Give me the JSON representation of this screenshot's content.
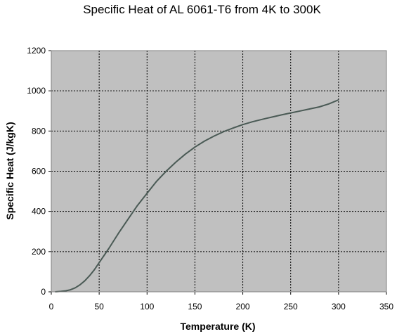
{
  "chart_data": {
    "type": "line",
    "title": "Specific Heat of AL 6061-T6 from 4K to 300K",
    "xlabel": "Temperature (K)",
    "ylabel": "Specific Heat (J/kgK)",
    "xlim": [
      0,
      350
    ],
    "ylim": [
      0,
      1200
    ],
    "xticks": [
      0,
      50,
      100,
      150,
      200,
      250,
      300,
      350
    ],
    "yticks": [
      0,
      200,
      400,
      600,
      800,
      1000,
      1200
    ],
    "grid": true,
    "legend": "none",
    "plot_background": "#c0c0c0",
    "line_color": "#4a5a55",
    "series": [
      {
        "x": [
          4,
          10,
          15,
          20,
          25,
          30,
          35,
          40,
          45,
          50,
          60,
          70,
          80,
          90,
          100,
          110,
          120,
          130,
          140,
          150,
          160,
          170,
          180,
          190,
          200,
          210,
          220,
          230,
          240,
          250,
          260,
          270,
          280,
          290,
          300
        ],
        "y": [
          0,
          2,
          5,
          10,
          20,
          35,
          55,
          80,
          110,
          145,
          215,
          290,
          360,
          430,
          490,
          550,
          600,
          645,
          685,
          720,
          750,
          775,
          797,
          815,
          832,
          846,
          858,
          869,
          880,
          890,
          900,
          910,
          920,
          935,
          955
        ]
      }
    ]
  }
}
